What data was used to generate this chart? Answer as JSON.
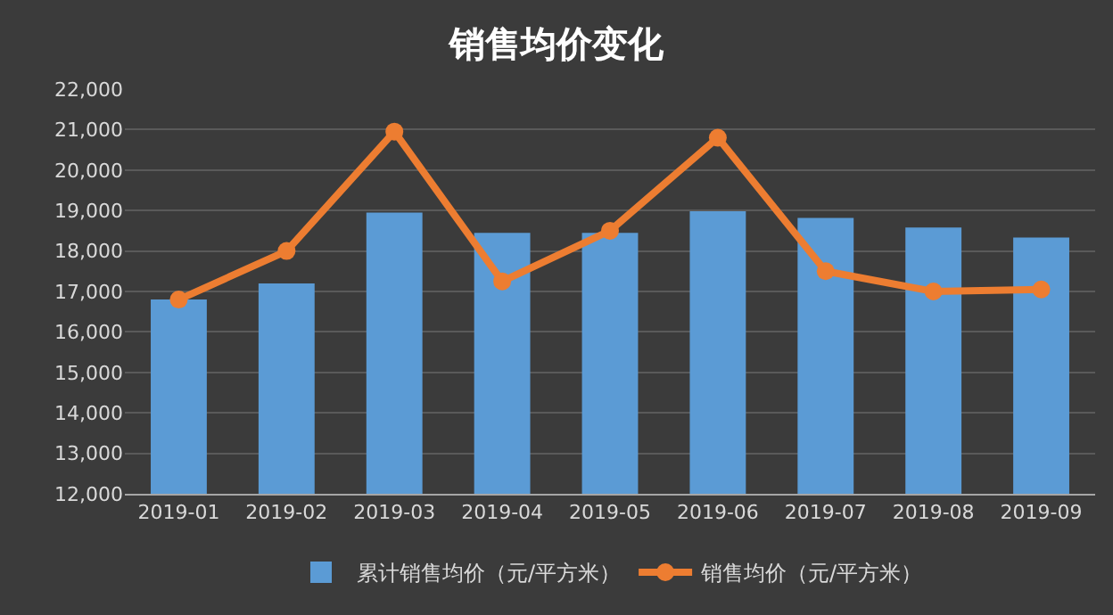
{
  "chart_data": {
    "type": "bar",
    "title": "销售均价变化",
    "categories": [
      "2019-01",
      "2019-02",
      "2019-03",
      "2019-04",
      "2019-05",
      "2019-06",
      "2019-07",
      "2019-08",
      "2019-09"
    ],
    "series": [
      {
        "name": "累计销售均价（元/平方米）",
        "color": "#5b9bd5",
        "values": [
          16800,
          17200,
          18950,
          18450,
          18450,
          18980,
          18820,
          18580,
          18330
        ]
      },
      {
        "name": "销售均价（元/平方米）",
        "type": "line",
        "color": "#ed7d31",
        "marker": "circle",
        "values": [
          16800,
          18000,
          20950,
          17250,
          18500,
          20800,
          17500,
          17000,
          17050
        ]
      }
    ],
    "ylim": [
      12000,
      22000
    ],
    "yticks": [
      {
        "value": 12000,
        "label": "12,000"
      },
      {
        "value": 13000,
        "label": "13,000"
      },
      {
        "value": 14000,
        "label": "14,000"
      },
      {
        "value": 15000,
        "label": "15,000"
      },
      {
        "value": 16000,
        "label": "16,000"
      },
      {
        "value": 17000,
        "label": "17,000"
      },
      {
        "value": 18000,
        "label": "18,000"
      },
      {
        "value": 19000,
        "label": "19,000"
      },
      {
        "value": 20000,
        "label": "20,000"
      },
      {
        "value": 21000,
        "label": "21,000"
      },
      {
        "value": 22000,
        "label": "22,000"
      }
    ],
    "grid": "y",
    "legend": "bottom"
  }
}
